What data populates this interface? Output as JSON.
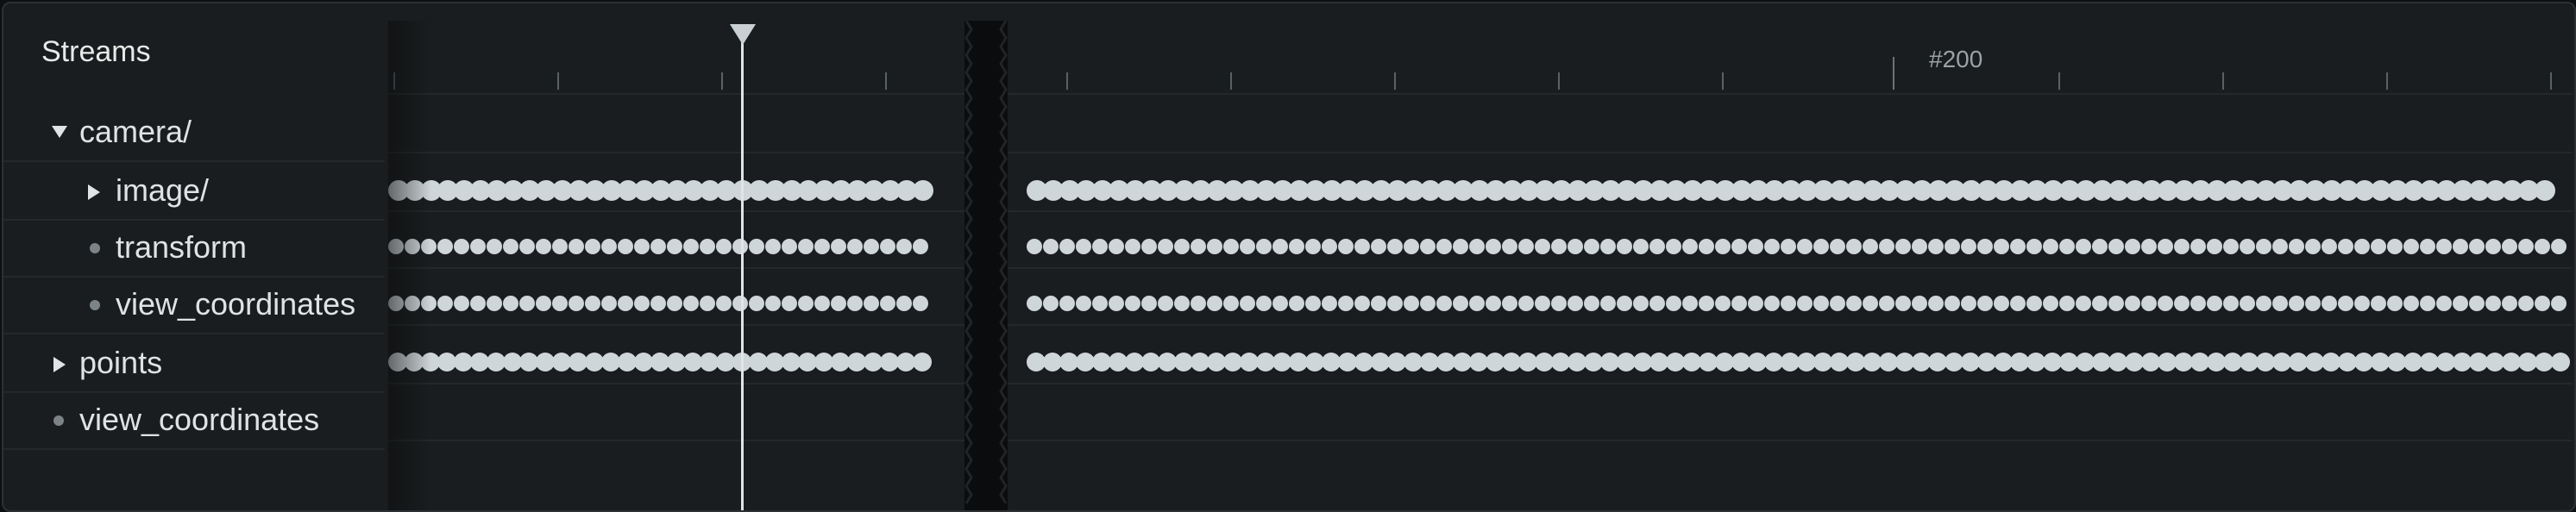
{
  "panel": {
    "title": "Streams"
  },
  "tree": [
    {
      "label": "camera/",
      "icon": "expanded-triangle-icon",
      "level": 0
    },
    {
      "label": "image/",
      "icon": "collapsed-triangle-icon",
      "level": 1
    },
    {
      "label": "transform",
      "icon": "leaf-dot-icon",
      "level": 1
    },
    {
      "label": "view_coordinates",
      "icon": "leaf-dot-icon",
      "level": 1
    },
    {
      "label": "points",
      "icon": "collapsed-triangle-icon",
      "level": 0
    },
    {
      "label": "view_coordinates",
      "icon": "leaf-dot-icon",
      "level": 0
    }
  ],
  "timeline": {
    "tick_label": "#200",
    "tracks": [
      {
        "stream": "camera/image/",
        "has_events": true
      },
      {
        "stream": "camera/transform",
        "has_events": true
      },
      {
        "stream": "camera/view_coordinates",
        "has_events": true
      },
      {
        "stream": "points",
        "has_events": true
      },
      {
        "stream": "view_coordinates",
        "has_events": false
      }
    ]
  },
  "colors": {
    "panel_bg": "#1a1d1f",
    "text": "#dfe3e4",
    "event_dot": "#cfd6d9",
    "cursor": "#dfe4e6"
  }
}
